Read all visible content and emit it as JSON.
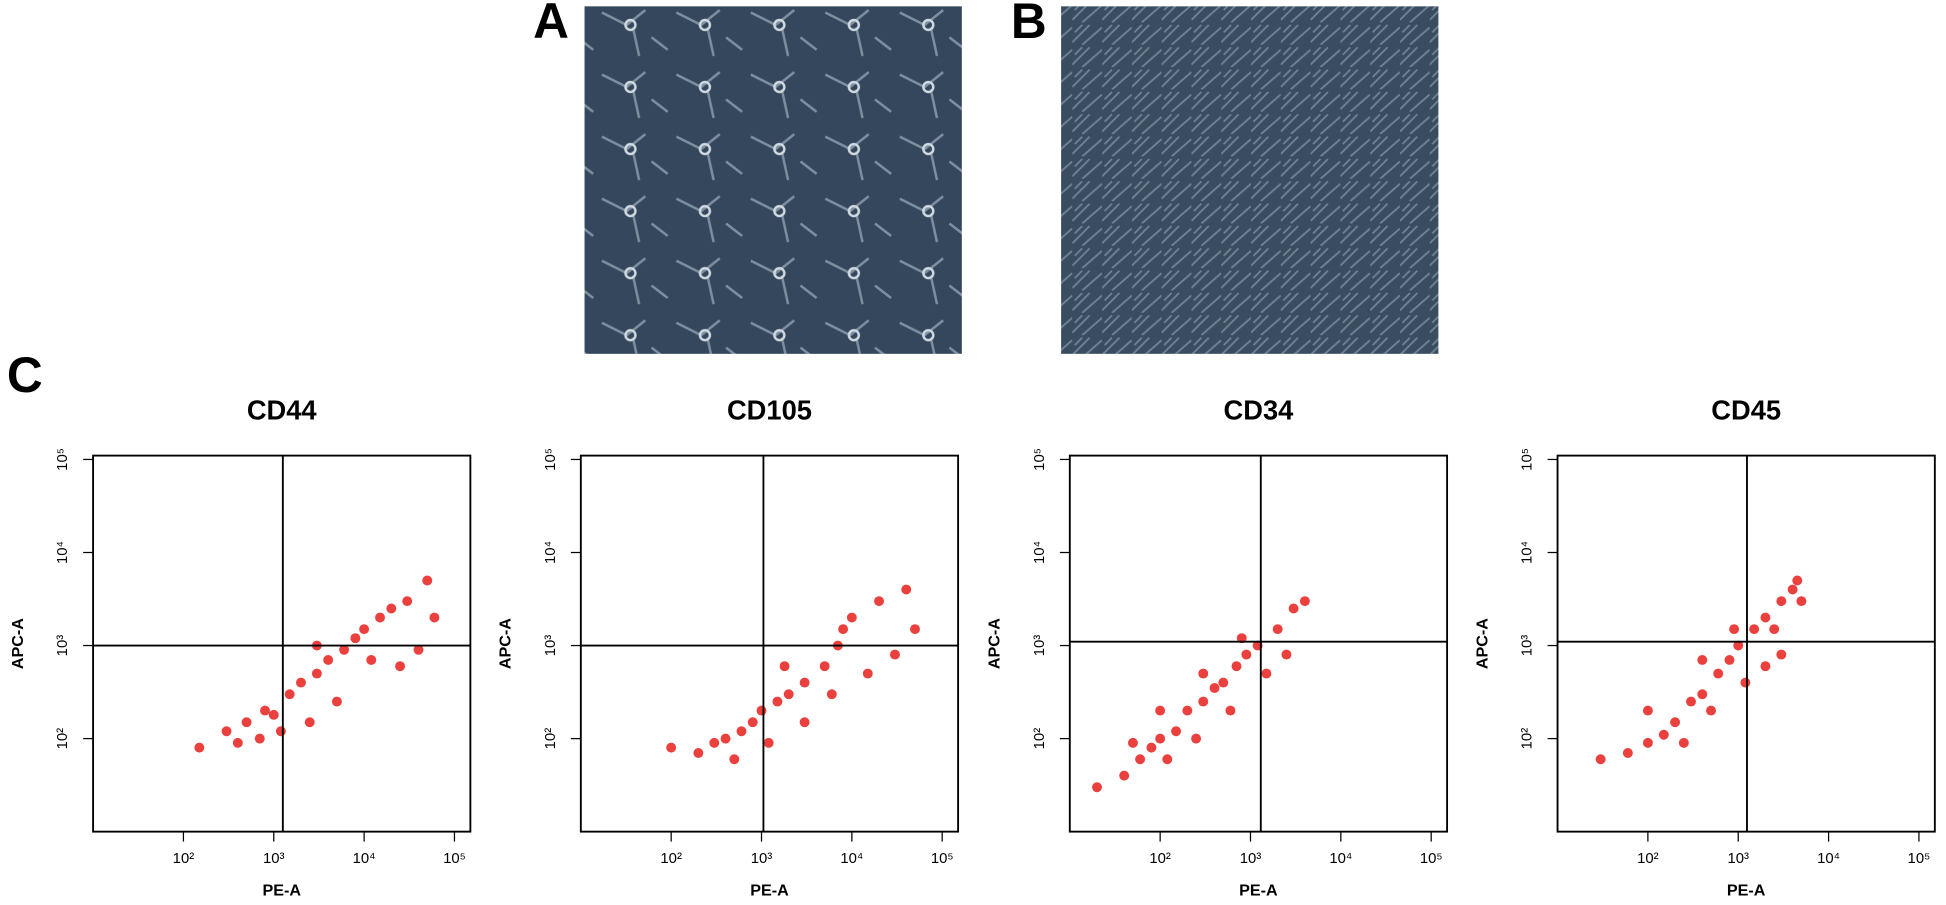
{
  "panels": [
    {
      "label": "A"
    },
    {
      "label": "B"
    },
    {
      "label": "C"
    }
  ],
  "chart_data": [
    {
      "type": "scatter",
      "title": "CD44",
      "x_label": "PE-A",
      "y_label": "APC-A",
      "log_scale": true,
      "color": "#e8201c",
      "xlim": [
        10,
        150000
      ],
      "ylim": [
        10,
        110000
      ],
      "xticks": [
        {
          "value": 100,
          "label": "10²"
        },
        {
          "value": 1000,
          "label": "10³"
        },
        {
          "value": 10000,
          "label": "10⁴"
        },
        {
          "value": 100000,
          "label": "10⁵"
        }
      ],
      "yticks": [
        {
          "value": 100,
          "label": "10²"
        },
        {
          "value": 1000,
          "label": "10³"
        },
        {
          "value": 10000,
          "label": "10⁴"
        },
        {
          "value": 100000,
          "label": "10⁵"
        }
      ],
      "gate_x": 1260,
      "gate_y": 1000,
      "x": [
        150,
        300,
        500,
        800,
        1000,
        1500,
        2000,
        3000,
        4000,
        6000,
        8000,
        10000,
        15000,
        20000,
        30000,
        50000,
        40000,
        60000,
        25000,
        5000,
        2500,
        1200,
        700,
        400,
        3000,
        12000
      ],
      "values": [
        80,
        120,
        150,
        200,
        180,
        300,
        400,
        500,
        700,
        900,
        1200,
        1500,
        2000,
        2500,
        3000,
        5000,
        900,
        2000,
        600,
        250,
        150,
        120,
        100,
        90,
        1000,
        700
      ]
    },
    {
      "type": "scatter",
      "title": "CD105",
      "x_label": "PE-A",
      "y_label": "APC-A",
      "log_scale": true,
      "color": "#e8201c",
      "xlim": [
        10,
        150000
      ],
      "ylim": [
        10,
        110000
      ],
      "xticks": [
        {
          "value": 100,
          "label": "10²"
        },
        {
          "value": 1000,
          "label": "10³"
        },
        {
          "value": 10000,
          "label": "10⁴"
        },
        {
          "value": 100000,
          "label": "10⁵"
        }
      ],
      "yticks": [
        {
          "value": 100,
          "label": "10²"
        },
        {
          "value": 1000,
          "label": "10³"
        },
        {
          "value": 10000,
          "label": "10⁴"
        },
        {
          "value": 100000,
          "label": "10⁵"
        }
      ],
      "gate_x": 1050,
      "gate_y": 1000,
      "x": [
        100,
        200,
        400,
        600,
        800,
        1000,
        1500,
        2000,
        3000,
        5000,
        7000,
        8000,
        10000,
        20000,
        40000,
        30000,
        15000,
        50000,
        3000,
        1200,
        500,
        300,
        1800,
        6000
      ],
      "values": [
        80,
        70,
        100,
        120,
        150,
        200,
        250,
        300,
        400,
        600,
        1000,
        1500,
        2000,
        3000,
        4000,
        800,
        500,
        1500,
        150,
        90,
        60,
        90,
        600,
        300
      ]
    },
    {
      "type": "scatter",
      "title": "CD34",
      "x_label": "PE-A",
      "y_label": "APC-A",
      "log_scale": true,
      "color": "#e8201c",
      "xlim": [
        10,
        150000
      ],
      "ylim": [
        10,
        110000
      ],
      "xticks": [
        {
          "value": 100,
          "label": "10²"
        },
        {
          "value": 1000,
          "label": "10³"
        },
        {
          "value": 10000,
          "label": "10⁴"
        },
        {
          "value": 100000,
          "label": "10⁵"
        }
      ],
      "yticks": [
        {
          "value": 100,
          "label": "10²"
        },
        {
          "value": 1000,
          "label": "10³"
        },
        {
          "value": 10000,
          "label": "10⁴"
        },
        {
          "value": 100000,
          "label": "10⁵"
        }
      ],
      "gate_x": 1300,
      "gate_y": 1100,
      "x": [
        20,
        40,
        60,
        80,
        100,
        150,
        200,
        300,
        400,
        500,
        700,
        900,
        1200,
        2000,
        3000,
        4000,
        1500,
        600,
        250,
        120,
        50,
        100,
        300,
        800,
        2500
      ],
      "values": [
        30,
        40,
        60,
        80,
        100,
        120,
        200,
        250,
        350,
        400,
        600,
        800,
        1000,
        1500,
        2500,
        3000,
        500,
        200,
        100,
        60,
        90,
        200,
        500,
        1200,
        800
      ]
    },
    {
      "type": "scatter",
      "title": "CD45",
      "x_label": "PE-A",
      "y_label": "APC-A",
      "log_scale": true,
      "color": "#e8201c",
      "xlim": [
        10,
        150000
      ],
      "ylim": [
        10,
        110000
      ],
      "xticks": [
        {
          "value": 100,
          "label": "10²"
        },
        {
          "value": 1000,
          "label": "10³"
        },
        {
          "value": 10000,
          "label": "10⁴"
        },
        {
          "value": 100000,
          "label": "10⁵"
        }
      ],
      "yticks": [
        {
          "value": 100,
          "label": "10²"
        },
        {
          "value": 1000,
          "label": "10³"
        },
        {
          "value": 10000,
          "label": "10⁴"
        },
        {
          "value": 100000,
          "label": "10⁵"
        }
      ],
      "gate_x": 1250,
      "gate_y": 1100,
      "x": [
        30,
        60,
        100,
        150,
        200,
        300,
        400,
        600,
        800,
        1000,
        1500,
        2000,
        3000,
        4000,
        5000,
        3000,
        1200,
        500,
        250,
        100,
        400,
        900,
        2500,
        4500,
        2000
      ],
      "values": [
        60,
        70,
        90,
        110,
        150,
        250,
        300,
        500,
        700,
        1000,
        1500,
        2000,
        3000,
        4000,
        3000,
        800,
        400,
        200,
        90,
        200,
        700,
        1500,
        1500,
        5000,
        600
      ]
    }
  ]
}
